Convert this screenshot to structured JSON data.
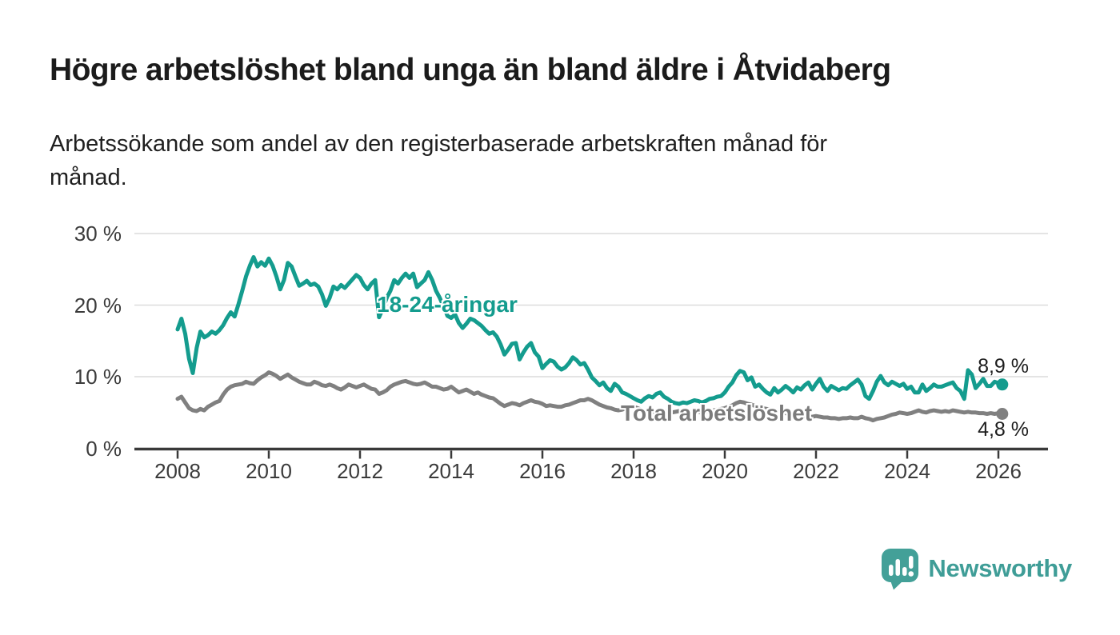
{
  "header": {
    "title": "Högre arbetslöshet bland unga än bland äldre i Åtvidaberg",
    "subtitle_lines": [
      "Arbetssökande som andel av den registerbaserade arbetskraften månad för",
      "månad."
    ]
  },
  "chart_data": {
    "type": "line",
    "unit": "%",
    "x_start_month": "2008-01",
    "x_end_month": "2026-02",
    "points_per_year": 12,
    "x_ticks": [
      2008,
      2010,
      2012,
      2014,
      2016,
      2018,
      2020,
      2022,
      2024,
      2026
    ],
    "x_tick_labels": [
      "2008",
      "2010",
      "2012",
      "2014",
      "2016",
      "2018",
      "2020",
      "2022",
      "2024",
      "2026"
    ],
    "y_ticks": [
      0,
      10,
      20,
      30
    ],
    "y_tick_labels": [
      "0 %",
      "10 %",
      "20 %",
      "30 %"
    ],
    "ylim": [
      0,
      31
    ],
    "grid": "horizontal",
    "legend_position": "inline-labels",
    "series": [
      {
        "name": "18-24-åringar",
        "label_text": "18-24-åringar",
        "end_label": "8,9 %",
        "end_value": 8.9,
        "color": "#149C8E",
        "values": [
          16.6,
          18.1,
          16.0,
          12.5,
          10.5,
          14.0,
          16.3,
          15.5,
          15.8,
          16.3,
          16.0,
          16.5,
          17.2,
          18.2,
          19.0,
          18.4,
          20.1,
          22.0,
          24.0,
          25.5,
          26.7,
          25.4,
          26.0,
          25.5,
          26.5,
          25.5,
          24.0,
          22.2,
          23.5,
          25.9,
          25.4,
          24.0,
          22.7,
          23.0,
          23.4,
          22.8,
          23.0,
          22.6,
          21.5,
          19.9,
          21.0,
          22.6,
          22.2,
          22.8,
          22.4,
          23.0,
          23.6,
          24.2,
          23.8,
          22.8,
          22.2,
          23.0,
          23.5,
          18.3,
          19.5,
          21.0,
          22.0,
          23.5,
          23.0,
          23.8,
          24.4,
          23.8,
          24.4,
          22.5,
          23.0,
          23.5,
          24.6,
          23.5,
          22.0,
          21.0,
          19.8,
          18.5,
          18.2,
          18.7,
          17.5,
          16.8,
          17.4,
          18.1,
          17.9,
          17.5,
          17.1,
          16.5,
          16.0,
          16.2,
          15.6,
          14.5,
          13.1,
          13.8,
          14.6,
          14.7,
          12.4,
          13.4,
          14.2,
          14.7,
          13.4,
          12.8,
          11.2,
          11.8,
          12.3,
          12.1,
          11.4,
          11.0,
          11.3,
          11.9,
          12.7,
          12.3,
          11.7,
          11.9,
          11.0,
          9.9,
          9.4,
          8.8,
          9.2,
          8.4,
          8.0,
          9.0,
          8.6,
          7.8,
          7.6,
          7.3,
          7.0,
          6.7,
          6.5,
          7.0,
          7.3,
          7.1,
          7.6,
          7.8,
          7.2,
          6.9,
          6.5,
          6.3,
          6.2,
          6.4,
          6.3,
          6.5,
          6.7,
          6.6,
          6.4,
          6.6,
          6.9,
          7.0,
          7.2,
          7.3,
          7.8,
          8.6,
          9.2,
          10.2,
          10.8,
          10.6,
          9.5,
          9.9,
          8.6,
          8.9,
          8.3,
          7.8,
          7.5,
          8.4,
          7.8,
          8.2,
          8.7,
          8.3,
          7.8,
          8.5,
          8.2,
          8.8,
          9.2,
          8.2,
          9.0,
          9.7,
          8.6,
          8.0,
          8.7,
          8.4,
          8.1,
          8.4,
          8.3,
          8.8,
          9.2,
          9.6,
          8.9,
          7.3,
          6.9,
          8.0,
          9.3,
          10.1,
          9.2,
          8.8,
          9.3,
          9.0,
          8.7,
          9.0,
          8.3,
          8.6,
          7.8,
          7.8,
          8.9,
          8.0,
          8.4,
          8.9,
          8.6,
          8.6,
          8.8,
          9.0,
          9.2,
          8.4,
          8.0,
          6.9,
          10.9,
          10.3,
          8.4,
          9.0,
          9.7,
          8.7,
          8.7,
          9.3,
          9.1,
          8.9
        ]
      },
      {
        "name": "Total arbetslöshet",
        "label_text": "Total arbetslöshet",
        "end_label": "4,8 %",
        "end_value": 4.8,
        "color": "#808080",
        "values": [
          6.9,
          7.2,
          6.4,
          5.6,
          5.3,
          5.2,
          5.5,
          5.3,
          5.8,
          6.1,
          6.4,
          6.6,
          7.5,
          8.2,
          8.6,
          8.8,
          8.9,
          9.0,
          9.3,
          9.1,
          9.0,
          9.5,
          9.9,
          10.2,
          10.6,
          10.4,
          10.1,
          9.7,
          10.0,
          10.3,
          9.9,
          9.6,
          9.3,
          9.1,
          8.9,
          8.9,
          9.3,
          9.1,
          8.8,
          8.7,
          8.9,
          8.7,
          8.4,
          8.2,
          8.5,
          8.9,
          8.7,
          8.5,
          8.7,
          8.9,
          8.6,
          8.3,
          8.2,
          7.6,
          7.8,
          8.1,
          8.6,
          8.9,
          9.1,
          9.3,
          9.4,
          9.2,
          9.0,
          8.9,
          9.0,
          9.2,
          8.9,
          8.6,
          8.6,
          8.4,
          8.2,
          8.3,
          8.6,
          8.2,
          7.8,
          8.0,
          8.2,
          7.9,
          7.6,
          7.8,
          7.5,
          7.3,
          7.1,
          7.0,
          6.6,
          6.2,
          5.9,
          6.1,
          6.3,
          6.2,
          6.0,
          6.3,
          6.5,
          6.7,
          6.5,
          6.4,
          6.2,
          5.9,
          6.0,
          5.9,
          5.8,
          5.8,
          6.0,
          6.1,
          6.3,
          6.5,
          6.7,
          6.7,
          6.9,
          6.7,
          6.4,
          6.1,
          5.9,
          5.7,
          5.6,
          5.4,
          5.3,
          5.4,
          5.6,
          5.7,
          5.8,
          5.6,
          5.4,
          5.3,
          5.2,
          5.1,
          5.2,
          5.3,
          5.2,
          5.1,
          5.0,
          5.1,
          5.2,
          5.1,
          5.0,
          5.1,
          5.2,
          5.1,
          5.0,
          5.1,
          5.2,
          5.3,
          5.4,
          5.5,
          5.6,
          5.8,
          6.0,
          6.3,
          6.5,
          6.4,
          6.2,
          6.1,
          5.9,
          5.8,
          5.6,
          5.5,
          5.4,
          5.3,
          5.2,
          5.0,
          4.9,
          4.8,
          4.7,
          4.6,
          4.5,
          4.5,
          4.4,
          4.4,
          4.5,
          4.4,
          4.3,
          4.3,
          4.2,
          4.2,
          4.1,
          4.2,
          4.2,
          4.3,
          4.2,
          4.2,
          4.4,
          4.2,
          4.1,
          3.9,
          4.1,
          4.2,
          4.3,
          4.5,
          4.7,
          4.8,
          5.0,
          4.9,
          4.8,
          4.9,
          5.1,
          5.3,
          5.1,
          5.0,
          5.2,
          5.3,
          5.2,
          5.1,
          5.2,
          5.1,
          5.3,
          5.2,
          5.1,
          5.0,
          5.1,
          5.0,
          5.0,
          4.9,
          4.9,
          4.8,
          4.9,
          4.8,
          4.9,
          4.8
        ]
      }
    ]
  },
  "branding": {
    "logo_text": "Newsworthy",
    "logo_color": "#3f9d97",
    "logo_icon": "speech-bubble-bar-chart-icon"
  },
  "style_colors": {
    "gridline": "#dcdcdc",
    "axis": "#3a3a3a",
    "text": "#1b1b1b"
  }
}
